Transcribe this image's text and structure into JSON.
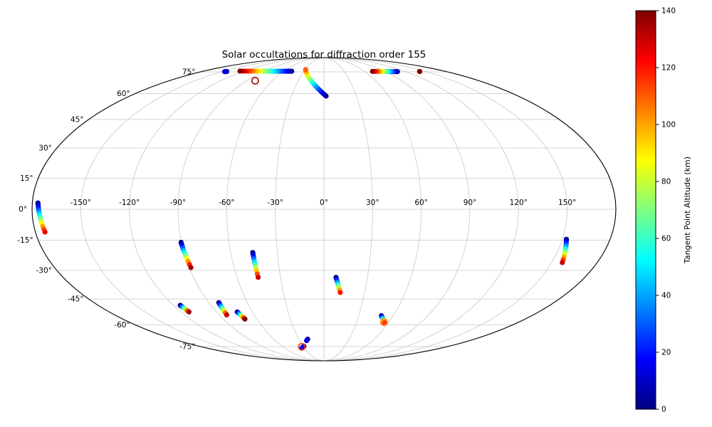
{
  "chart_data": {
    "type": "scatter",
    "projection": "mollweide",
    "title": "Solar occultations for diffraction order 155",
    "colorbar": {
      "label": "Tangent Point Altitude (km)",
      "vmin": 0,
      "vmax": 140,
      "ticks": [
        0,
        20,
        40,
        60,
        80,
        100,
        120,
        140
      ],
      "colormap": "jet"
    },
    "graticule": {
      "lon_grid_deg": [
        -150,
        -120,
        -90,
        -60,
        -30,
        0,
        30,
        60,
        90,
        120,
        150
      ],
      "lat_grid_deg": [
        75,
        60,
        45,
        30,
        15,
        0,
        -15,
        -30,
        -45,
        -60,
        -75
      ],
      "lon_tick_labels": [
        "-150°",
        "-120°",
        "-90°",
        "-60°",
        "-30°",
        "0°",
        "30°",
        "60°",
        "90°",
        "120°",
        "150°"
      ],
      "lat_tick_labels": [
        "75°",
        "60°",
        "45°",
        "30°",
        "15°",
        "0°",
        "-15°",
        "-30°",
        "-45°",
        "-60°",
        "-75°"
      ],
      "grid_color": "#c8c8c8",
      "outline_color": "#000000"
    },
    "marker": "o",
    "marker_size_px": 7,
    "tracks": [
      {
        "name": "occ-01",
        "lon": [
          -143.5,
          -146
        ],
        "lat": [
          75.3,
          75.2
        ],
        "alt": [
          0,
          15
        ],
        "n": 4
      },
      {
        "name": "occ-02",
        "lon": [
          -48,
          -125.5
        ],
        "lat": [
          75.5,
          75.6
        ],
        "alt": [
          0,
          140
        ],
        "n": 24
      },
      {
        "name": "occ-03",
        "lon": [
          2,
          -29
        ],
        "lat": [
          58.5,
          76.8
        ],
        "alt": [
          0,
          110
        ],
        "n": 15
      },
      {
        "name": "occ-04",
        "lon": [
          108,
          72
        ],
        "lat": [
          75.2,
          75.4
        ],
        "alt": [
          0,
          140
        ],
        "n": 13
      },
      {
        "name": "occ-05",
        "lon": [
          141,
          141.5
        ],
        "lat": [
          75.3,
          75.3
        ],
        "alt": [
          128,
          140
        ],
        "n": 2
      },
      {
        "name": "occ-06",
        "lon": [
          -176.5,
          -174
        ],
        "lat": [
          3,
          -11
        ],
        "alt": [
          0,
          125
        ],
        "n": 13
      },
      {
        "name": "occ-07",
        "lon": [
          152.5,
          157
        ],
        "lat": [
          -14.5,
          -26
        ],
        "alt": [
          0,
          130
        ],
        "n": 11
      },
      {
        "name": "occ-08",
        "lon": [
          -90.3,
          -88.9
        ],
        "lat": [
          -16,
          -28.5
        ],
        "alt": [
          0,
          135
        ],
        "n": 11
      },
      {
        "name": "occ-09",
        "lon": [
          -45.8,
          -45.4
        ],
        "lat": [
          -21,
          -33.5
        ],
        "alt": [
          0,
          130
        ],
        "n": 10
      },
      {
        "name": "occ-10",
        "lon": [
          8.3,
          12
        ],
        "lat": [
          -33.5,
          -41.5
        ],
        "alt": [
          0,
          120
        ],
        "n": 8
      },
      {
        "name": "occ-11",
        "lon": [
          -114.5,
          -113.2
        ],
        "lat": [
          -48.5,
          -52.3
        ],
        "alt": [
          0,
          135
        ],
        "n": 7
      },
      {
        "name": "occ-12",
        "lon": [
          -82.3,
          -83.6
        ],
        "lat": [
          -47,
          -54
        ],
        "alt": [
          0,
          130
        ],
        "n": 8
      },
      {
        "name": "occ-13",
        "lon": [
          -72.7,
          -70.7
        ],
        "lat": [
          -52.3,
          -56.5
        ],
        "alt": [
          0,
          140
        ],
        "n": 7
      },
      {
        "name": "occ-14",
        "lon": [
          49.8,
          56
        ],
        "lat": [
          -54.5,
          -58.6
        ],
        "alt": [
          0,
          115
        ],
        "n": 6
      },
      {
        "name": "occ-15",
        "lon": [
          -19.5,
          -21.5
        ],
        "lat": [
          -69.5,
          -70.5
        ],
        "alt": [
          0,
          12
        ],
        "n": 3
      },
      {
        "name": "occ-16",
        "lon": [
          -29,
          -34
        ],
        "lat": [
          -74.8,
          -76.2
        ],
        "alt": [
          0,
          15
        ],
        "n": 4
      }
    ],
    "rings": [
      {
        "name": "ring-01",
        "lon": -80,
        "lat": 68.5,
        "alt": 135
      },
      {
        "name": "ring-02",
        "lon": 55.5,
        "lat": -58.4,
        "alt": 105
      },
      {
        "name": "ring-03",
        "lon": -32.5,
        "lat": -75.2,
        "alt": 115
      }
    ]
  }
}
